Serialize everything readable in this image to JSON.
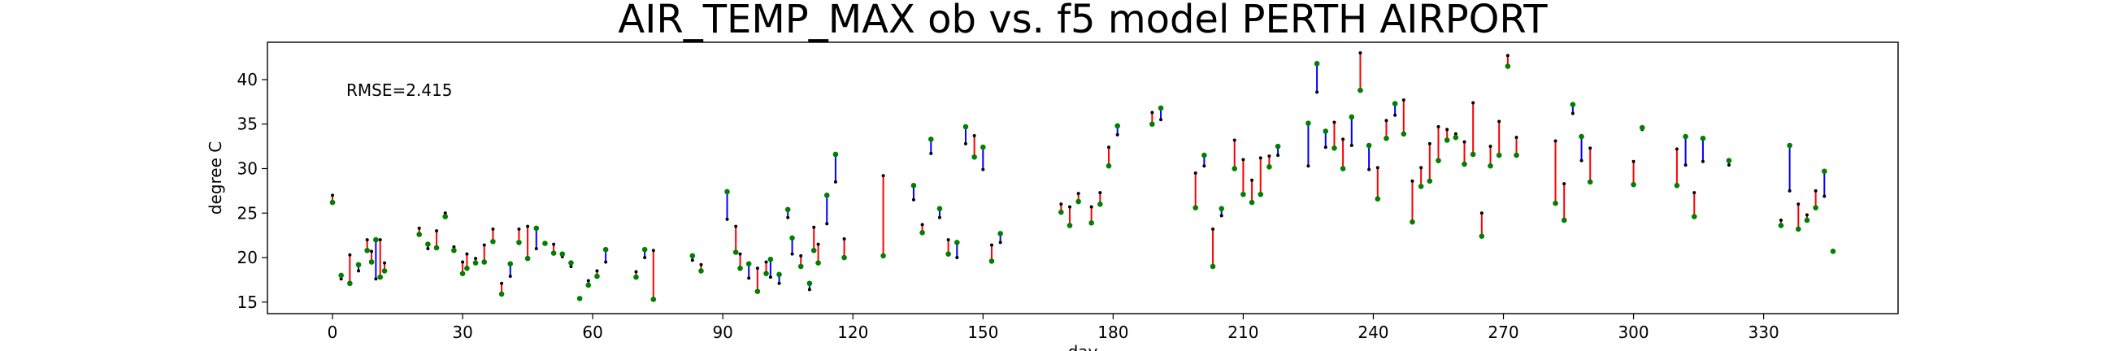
{
  "chart_data": {
    "type": "scatter",
    "title": "AIR_TEMP_MAX  ob vs. f5  model  PERTH AIRPORT",
    "xlabel": "day",
    "ylabel": "degree C",
    "annotation": "RMSE=2.415",
    "xlim": [
      -15,
      361
    ],
    "ylim": [
      13.7,
      44.2
    ],
    "xticks": [
      0,
      30,
      60,
      90,
      120,
      150,
      180,
      210,
      240,
      270,
      300,
      330
    ],
    "yticks": [
      15,
      20,
      25,
      30,
      35,
      40
    ],
    "grid": false,
    "legend": "none",
    "colors": {
      "model_above": "#ff0000",
      "model_below": "#0000ff",
      "ob_marker": "#008000",
      "model_marker": "#000000"
    },
    "series": [
      {
        "name": "ob",
        "x": [
          0,
          2,
          4,
          6,
          8,
          9,
          10,
          11,
          12,
          20,
          22,
          24,
          26,
          28,
          30,
          31,
          33,
          35,
          37,
          39,
          41,
          43,
          45,
          47,
          49,
          51,
          53,
          55,
          57,
          59,
          61,
          63,
          70,
          72,
          74,
          83,
          85,
          91,
          93,
          94,
          96,
          98,
          100,
          101,
          103,
          105,
          106,
          108,
          110,
          111,
          112,
          114,
          116,
          118,
          127,
          134,
          136,
          138,
          140,
          142,
          144,
          146,
          148,
          150,
          152,
          154,
          168,
          170,
          172,
          175,
          177,
          179,
          181,
          189,
          191,
          199,
          201,
          203,
          205,
          208,
          210,
          212,
          214,
          216,
          218,
          225,
          227,
          229,
          231,
          233,
          235,
          237,
          239,
          241,
          243,
          245,
          247,
          249,
          251,
          253,
          255,
          257,
          259,
          261,
          263,
          265,
          267,
          269,
          271,
          273,
          282,
          284,
          286,
          288,
          290,
          300,
          302,
          310,
          312,
          314,
          316,
          322,
          334,
          336,
          338,
          340,
          342,
          344,
          346
        ],
        "y": [
          26.2,
          18,
          17.1,
          19.2,
          20.8,
          19.5,
          22,
          17.8,
          18.5,
          22.6,
          21.5,
          21.1,
          24.6,
          20.8,
          18.2,
          18.8,
          19.4,
          19.5,
          21.8,
          15.9,
          19.3,
          21.7,
          19.9,
          23.3,
          21.6,
          20.5,
          20.4,
          19.4,
          15.4,
          16.9,
          17.9,
          20.9,
          17.8,
          20.9,
          15.3,
          20.2,
          18.5,
          27.4,
          20.6,
          18.8,
          19.3,
          16.2,
          18.2,
          19.8,
          18.1,
          25.4,
          22.2,
          19,
          17.1,
          20.8,
          19.4,
          27,
          31.6,
          20,
          20.2,
          28.1,
          22.8,
          33.3,
          25.5,
          20.4,
          21.7,
          34.7,
          31.3,
          32.4,
          19.6,
          22.7,
          25.1,
          23.6,
          26.3,
          23.9,
          26,
          30.3,
          34.8,
          35,
          36.8,
          25.6,
          31.5,
          19,
          25.5,
          30,
          27.1,
          26.2,
          27.1,
          30.2,
          32.5,
          35.1,
          41.8,
          34.2,
          32.3,
          30,
          35.8,
          38.8,
          32.6,
          26.6,
          33.4,
          37.3,
          33.9,
          24,
          28,
          28.6,
          30.9,
          33.2,
          33.5,
          30.5,
          31.6,
          22.4,
          30.3,
          31.5,
          41.5,
          31.5,
          26.1,
          24.2,
          37.2,
          33.6,
          28.5,
          28.2,
          34.6,
          28.1,
          33.6,
          24.6,
          33.4,
          30.9,
          23.6,
          32.6,
          23.2,
          24.2,
          25.6,
          29.7,
          20.7
        ]
      },
      {
        "name": "f5",
        "x": [
          0,
          2,
          4,
          6,
          8,
          9,
          10,
          11,
          12,
          20,
          22,
          24,
          26,
          28,
          30,
          31,
          33,
          35,
          37,
          39,
          41,
          43,
          45,
          47,
          49,
          51,
          53,
          55,
          57,
          59,
          61,
          63,
          70,
          72,
          74,
          83,
          85,
          91,
          93,
          94,
          96,
          98,
          100,
          101,
          103,
          105,
          106,
          108,
          110,
          111,
          112,
          114,
          116,
          118,
          127,
          134,
          136,
          138,
          140,
          142,
          144,
          146,
          148,
          150,
          152,
          154,
          168,
          170,
          172,
          175,
          177,
          179,
          181,
          189,
          191,
          199,
          201,
          203,
          205,
          208,
          210,
          212,
          214,
          216,
          218,
          225,
          227,
          229,
          231,
          233,
          235,
          237,
          239,
          241,
          243,
          245,
          247,
          249,
          251,
          253,
          255,
          257,
          259,
          261,
          263,
          265,
          267,
          269,
          271,
          273,
          282,
          284,
          286,
          288,
          290,
          300,
          302,
          310,
          312,
          314,
          316,
          322,
          334,
          336,
          338,
          340,
          342,
          344,
          346
        ],
        "y": [
          27,
          17.6,
          20.3,
          18.5,
          22,
          20.7,
          17.6,
          22,
          19.4,
          23.3,
          21,
          23,
          25,
          21.2,
          19.5,
          20.4,
          19.9,
          21.4,
          23.2,
          17.1,
          17.9,
          23.2,
          23.5,
          21,
          21.5,
          21.5,
          20.1,
          19,
          15.3,
          17.4,
          18.5,
          19.5,
          18.4,
          20,
          20.8,
          19.7,
          19.2,
          24.3,
          23.5,
          20.4,
          17.7,
          18.8,
          19.5,
          17.8,
          17.1,
          24.5,
          20.4,
          20.2,
          16.4,
          23.4,
          21.5,
          23.8,
          28.5,
          22.1,
          29.2,
          26.5,
          23.7,
          31.7,
          24.5,
          22,
          20,
          32.8,
          33.7,
          29.9,
          21.4,
          21.7,
          26,
          25.7,
          27.2,
          25.7,
          27.3,
          32.4,
          33.8,
          36.3,
          35.5,
          29.5,
          30.3,
          23.2,
          24.7,
          33.2,
          31,
          28.7,
          31.2,
          31.4,
          31.5,
          30.3,
          38.6,
          32.4,
          35.2,
          33.3,
          32.6,
          43,
          29.9,
          30.1,
          35.4,
          36,
          37.7,
          28.6,
          30.1,
          32.8,
          34.7,
          34.4,
          33.9,
          33,
          37.4,
          25,
          32.5,
          35.3,
          42.7,
          33.5,
          33.1,
          28.3,
          36.2,
          30.9,
          32.3,
          30.8,
          34.4,
          32.2,
          30.4,
          27.3,
          30.8,
          30.4,
          24.2,
          27.5,
          26,
          24.8,
          27.5,
          26.9,
          20.8
        ]
      }
    ]
  }
}
